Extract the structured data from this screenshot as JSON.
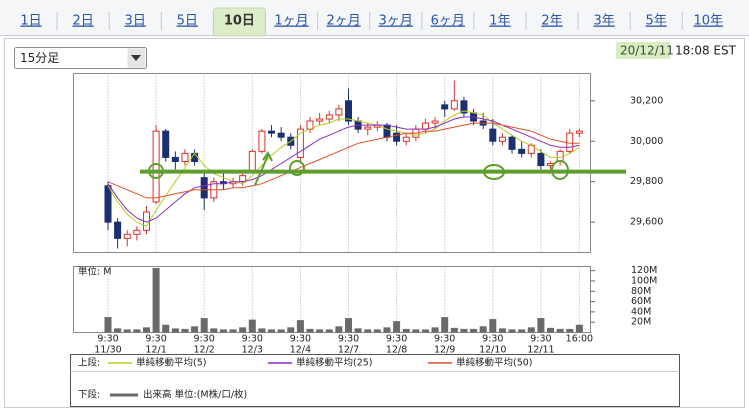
{
  "tabs": [
    "1日",
    "2日",
    "3日",
    "5日",
    "10日",
    "1ヶ月",
    "2ヶ月",
    "3ヶ月",
    "6ヶ月",
    "1年",
    "2年",
    "3年",
    "5年",
    "10年"
  ],
  "active_tab": 4,
  "interval": "15分足",
  "timestamp": {
    "date": "20/12/11",
    "time": "18:08 EST"
  },
  "legend": {
    "upper_label": "上段:",
    "lower_label": "下段:",
    "volume_label": "出来高 単位:(M株/口/枚)"
  },
  "chart_data": [
    {
      "type": "candlestick",
      "up_color": "#d9302a",
      "down_color": "#1c2f6e",
      "open": [
        29780,
        29600,
        29520,
        29540,
        29560,
        29700,
        30050,
        29920,
        29900,
        29940,
        29820,
        29720,
        29800,
        29790,
        29800,
        29850,
        29950,
        30050,
        30040,
        30020,
        29920,
        30060,
        30100,
        30110,
        30130,
        30200,
        30100,
        30060,
        30070,
        30080,
        30040,
        30000,
        30020,
        30060,
        30090,
        30180,
        30160,
        30200,
        30140,
        30100,
        30060,
        30000,
        30020,
        29960,
        29940,
        29940,
        29880,
        29900,
        29950,
        30040
      ],
      "high": [
        29800,
        29620,
        29560,
        29580,
        29680,
        30080,
        30060,
        29950,
        29960,
        29960,
        29860,
        29820,
        29840,
        29820,
        29850,
        29960,
        30060,
        30080,
        30070,
        30040,
        30080,
        30120,
        30140,
        30150,
        30180,
        30260,
        30120,
        30090,
        30100,
        30090,
        30080,
        30040,
        30080,
        30110,
        30120,
        30200,
        30300,
        30220,
        30160,
        30140,
        30110,
        30040,
        30030,
        30000,
        29990,
        29960,
        29900,
        29960,
        30060,
        30060
      ],
      "low": [
        29560,
        29470,
        29480,
        29510,
        29540,
        29690,
        29900,
        29860,
        29880,
        29880,
        29660,
        29700,
        29760,
        29770,
        29780,
        29840,
        29940,
        30020,
        30000,
        29960,
        29900,
        30040,
        30080,
        30090,
        30100,
        30080,
        30040,
        30030,
        30050,
        30000,
        29980,
        29980,
        30000,
        30040,
        30060,
        30120,
        30150,
        30120,
        30080,
        30060,
        29980,
        29980,
        29940,
        29920,
        29920,
        29860,
        29860,
        29880,
        29940,
        30020
      ],
      "close": [
        29600,
        29520,
        29540,
        29560,
        29650,
        30050,
        29920,
        29900,
        29940,
        29900,
        29720,
        29800,
        29790,
        29800,
        29830,
        29950,
        30050,
        30040,
        30020,
        29980,
        30060,
        30100,
        30110,
        30130,
        30160,
        30100,
        30060,
        30070,
        30080,
        30020,
        30000,
        30020,
        30060,
        30090,
        30100,
        30160,
        30200,
        30140,
        30100,
        30080,
        30000,
        30020,
        29960,
        29940,
        29980,
        29880,
        29890,
        29950,
        30040,
        30050
      ],
      "series": [
        {
          "name": "単純移動平均(5)",
          "color": "#b8cc1e",
          "values": [
            29780,
            29700,
            29640,
            29600,
            29580,
            29660,
            29730,
            29800,
            29870,
            29940,
            29880,
            29840,
            29820,
            29800,
            29790,
            29830,
            29880,
            29930,
            29970,
            30000,
            30040,
            30060,
            30080,
            30090,
            30110,
            30110,
            30100,
            30090,
            30080,
            30060,
            30050,
            30040,
            30030,
            30040,
            30060,
            30100,
            30130,
            30150,
            30140,
            30130,
            30090,
            30060,
            30030,
            30000,
            29980,
            29950,
            29920,
            29920,
            29940,
            29970
          ]
        },
        {
          "name": "単純移動平均(25)",
          "color": "#8e2bc4",
          "values": [
            29790,
            29720,
            29660,
            29620,
            29600,
            29620,
            29660,
            29700,
            29740,
            29770,
            29780,
            29790,
            29790,
            29800,
            29800,
            29810,
            29830,
            29860,
            29890,
            29920,
            29950,
            29980,
            30010,
            30030,
            30050,
            30070,
            30080,
            30080,
            30080,
            30080,
            30070,
            30060,
            30060,
            30060,
            30070,
            30090,
            30110,
            30120,
            30120,
            30110,
            30100,
            30080,
            30060,
            30040,
            30020,
            30000,
            29980,
            29970,
            29970,
            29980
          ]
        },
        {
          "name": "単純移動平均(50)",
          "color": "#e0502a",
          "values": [
            29800,
            29780,
            29760,
            29740,
            29720,
            29720,
            29730,
            29740,
            29750,
            29760,
            29760,
            29760,
            29760,
            29770,
            29770,
            29780,
            29790,
            29810,
            29830,
            29850,
            29870,
            29890,
            29910,
            29930,
            29950,
            29970,
            29990,
            30000,
            30010,
            30020,
            30030,
            30040,
            30040,
            30050,
            30050,
            30060,
            30070,
            30080,
            30090,
            30090,
            30090,
            30080,
            30070,
            30060,
            30050,
            30030,
            30010,
            30000,
            29990,
            29990
          ]
        }
      ],
      "reference_line": {
        "value": 29850,
        "color": "#5e9e2e"
      },
      "ylim": [
        29450,
        30335
      ],
      "yticks": [
        {
          "value": 29600,
          "label": "29,600"
        },
        {
          "value": 29800,
          "label": "29,800"
        },
        {
          "value": 30000,
          "label": "30,000"
        },
        {
          "value": 30200,
          "label": "30,200"
        }
      ]
    },
    {
      "type": "bar",
      "unit_label": "単位: M",
      "color": "#6a6a6a",
      "categories": [
        [
          "9:30",
          "11/30"
        ],
        null,
        null,
        null,
        null,
        [
          "9:30",
          "12/1"
        ],
        null,
        null,
        null,
        null,
        [
          "9:30",
          "12/2"
        ],
        null,
        null,
        null,
        null,
        [
          "9:30",
          "12/3"
        ],
        null,
        null,
        null,
        null,
        [
          "9:30",
          "12/4"
        ],
        null,
        null,
        null,
        null,
        [
          "9:30",
          "12/7"
        ],
        null,
        null,
        null,
        null,
        [
          "9:30",
          "12/8"
        ],
        null,
        null,
        null,
        null,
        [
          "9:30",
          "12/9"
        ],
        null,
        null,
        null,
        null,
        [
          "9:30",
          "12/10"
        ],
        null,
        null,
        null,
        null,
        [
          "9:30",
          "12/11"
        ],
        null,
        null,
        null,
        [
          "16:00"
        ]
      ],
      "values": [
        30,
        8,
        6,
        6,
        10,
        125,
        15,
        8,
        7,
        12,
        28,
        8,
        6,
        6,
        10,
        25,
        8,
        6,
        6,
        10,
        24,
        7,
        6,
        6,
        12,
        28,
        8,
        6,
        6,
        10,
        22,
        7,
        6,
        6,
        10,
        30,
        9,
        7,
        7,
        12,
        26,
        8,
        6,
        6,
        10,
        28,
        9,
        7,
        7,
        15
      ],
      "ylim": [
        0,
        128
      ],
      "yticks": [
        {
          "value": 20,
          "label": "20M"
        },
        {
          "value": 40,
          "label": "40M"
        },
        {
          "value": 60,
          "label": "60M"
        },
        {
          "value": 80,
          "label": "80M"
        },
        {
          "value": 100,
          "label": "100M"
        },
        {
          "value": 120,
          "label": "120M"
        }
      ]
    }
  ]
}
